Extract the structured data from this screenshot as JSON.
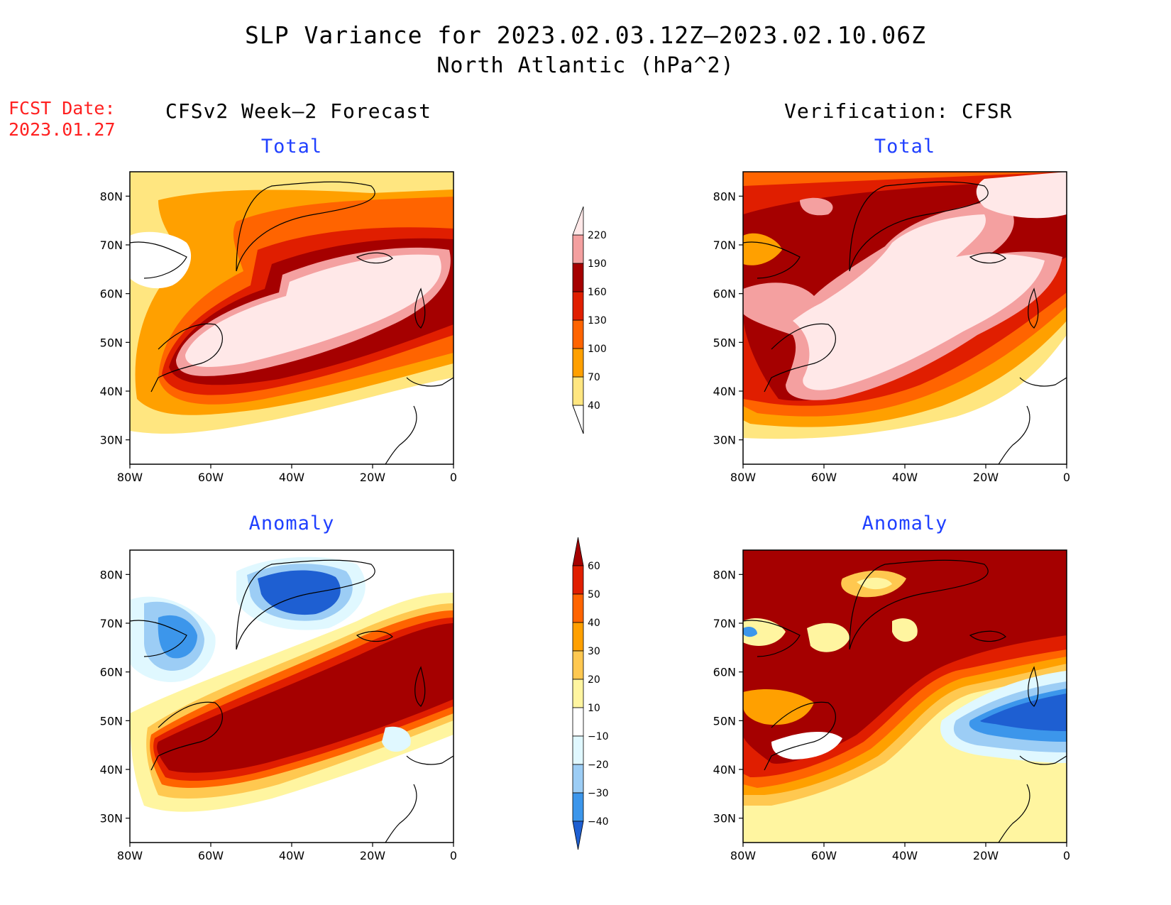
{
  "header": {
    "title": "SLP Variance for 2023.02.03.12Z—2023.02.10.06Z",
    "subtitle": "North Atlantic (hPa^2)"
  },
  "fcst_date": {
    "label": "FCST Date:",
    "value": "2023.01.27"
  },
  "columns": {
    "left": "CFSv2 Week—2 Forecast",
    "right": "Verification: CFSR"
  },
  "panels": {
    "forecast_total": "Total",
    "verification_total": "Total",
    "forecast_anomaly": "Anomaly",
    "verification_anomaly": "Anomaly"
  },
  "axes": {
    "lat_labels": [
      "80N",
      "70N",
      "60N",
      "50N",
      "40N",
      "30N"
    ],
    "lon_labels": [
      "80W",
      "60W",
      "40W",
      "20W",
      "0"
    ]
  },
  "colorbars": {
    "total": {
      "levels": [
        "40",
        "70",
        "100",
        "130",
        "160",
        "190",
        "220"
      ],
      "colors": [
        "#ffe680",
        "#ffa000",
        "#ff6400",
        "#e01e00",
        "#a50000",
        "#f4a0a0",
        "#ffe8e8"
      ]
    },
    "anomaly": {
      "levels": [
        "60",
        "50",
        "40",
        "30",
        "20",
        "10",
        "−10",
        "−20",
        "−30",
        "−40"
      ],
      "colors": [
        "#a50000",
        "#e01e00",
        "#ff6400",
        "#ffa000",
        "#ffc850",
        "#fff5a0",
        "#ffffff",
        "#e0f8ff",
        "#9ccdf5",
        "#3c96eb",
        "#1e5fd2"
      ]
    }
  },
  "chart_data": {
    "type": "heatmap",
    "region": "North Atlantic",
    "units": "hPa^2",
    "lon_range": [
      -80,
      0
    ],
    "lat_range": [
      25,
      85
    ],
    "total_levels": [
      40,
      70,
      100,
      130,
      160,
      190,
      220
    ],
    "anomaly_levels": [
      -40,
      -30,
      -20,
      -10,
      10,
      20,
      30,
      40,
      50,
      60
    ],
    "panels": [
      {
        "name": "forecast_total",
        "max_region": "Labrador Sea to Iceland storm track > 220"
      },
      {
        "name": "verification_total",
        "max_region": "Newfoundland to Iceland, > 220"
      },
      {
        "name": "forecast_anomaly",
        "max_region": "storm track > 60; negative over Greenland < -40"
      },
      {
        "name": "verification_anomaly",
        "max_region": "storm track > 60; negative west of Europe < -40"
      }
    ]
  }
}
